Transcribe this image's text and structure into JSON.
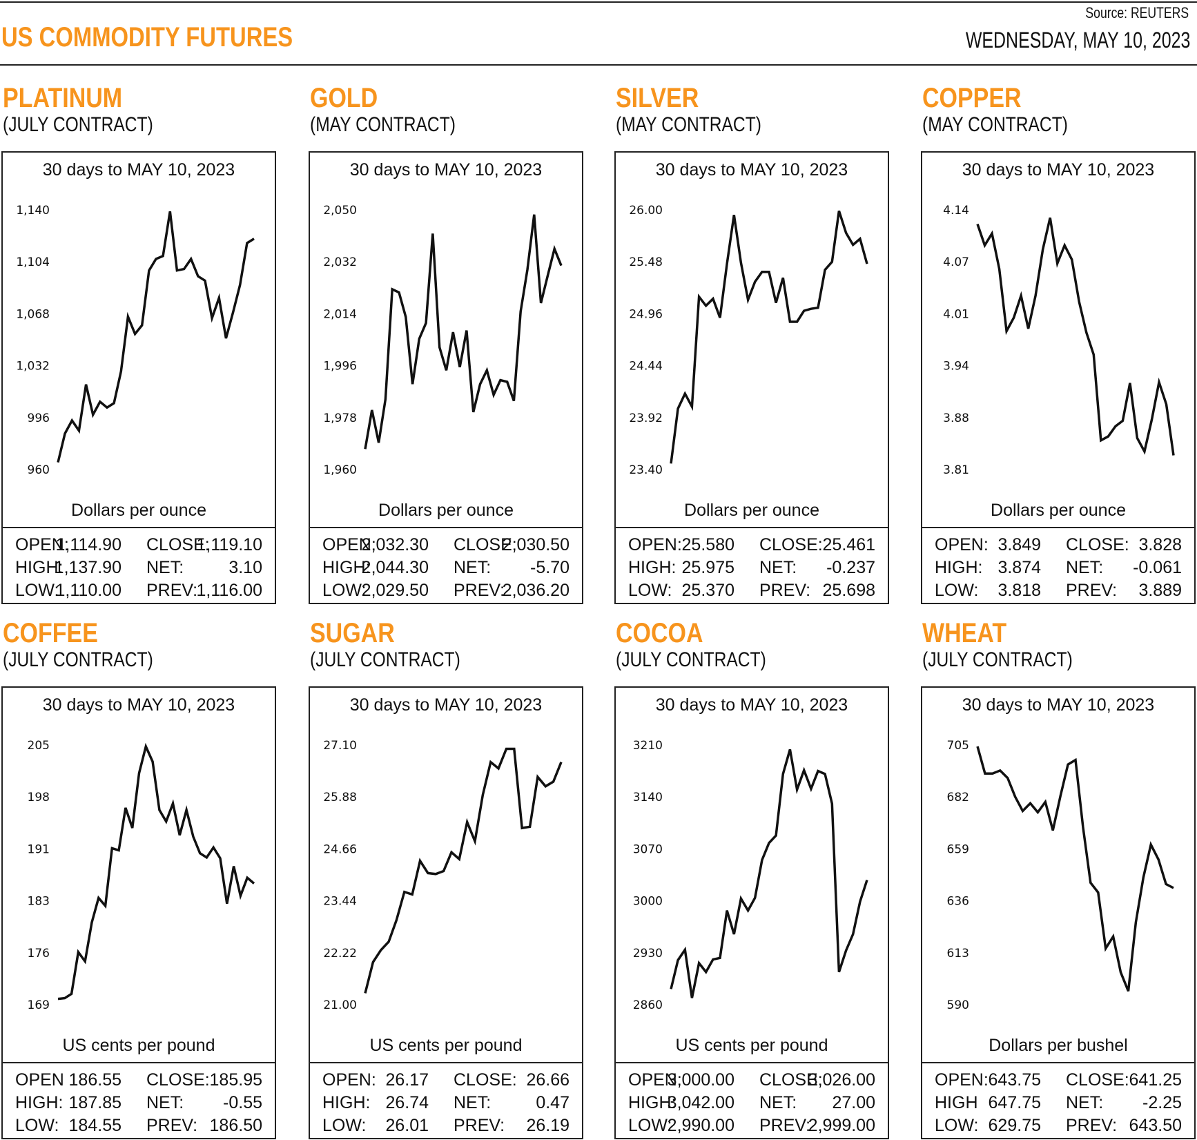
{
  "header": {
    "title": "US COMMODITY FUTURES",
    "source": "Source: REUTERS",
    "date": "WEDNESDAY, MAY 10, 2023"
  },
  "colors": {
    "accent": "#F7941D",
    "line": "#111111"
  },
  "chart_data": [
    {
      "type": "line",
      "name": "PLATINUM",
      "contract": "(JULY CONTRACT)",
      "title": "30 days to MAY 10, 2023",
      "ylabel": "Dollars per ounce",
      "yticks": [
        "960",
        "996",
        "1,032",
        "1,068",
        "1,104",
        "1,140"
      ],
      "ylim": [
        960,
        1140
      ],
      "values": [
        965,
        985,
        994,
        987,
        1019,
        998,
        1007,
        1003,
        1006,
        1028,
        1066,
        1054,
        1060,
        1098,
        1106,
        1108,
        1139,
        1098,
        1099,
        1106,
        1094,
        1091,
        1065,
        1079,
        1051,
        1069,
        1088,
        1117,
        1120
      ],
      "stats": [
        [
          "OPEN:",
          "1,114.90",
          "CLOSE:",
          "1,119.10"
        ],
        [
          "HIGH:",
          "1,137.90",
          "NET:",
          "3.10"
        ],
        [
          "LOW:",
          "1,110.00",
          "PREV:",
          "1,116.00"
        ]
      ]
    },
    {
      "type": "line",
      "name": "GOLD",
      "contract": "(MAY CONTRACT)",
      "title": "30 days to MAY 10, 2023",
      "ylabel": "Dollars per ounce",
      "yticks": [
        "1,960",
        "1,978",
        "1,996",
        "2,014",
        "2,032",
        "2,050"
      ],
      "ylim": [
        1960,
        2050
      ],
      "values": [
        1967.1,
        1980.6,
        1969.3,
        1984.4,
        2022.5,
        2021.4,
        2012.9,
        1989.6,
        2005.3,
        2010.8,
        2041.8,
        2002.4,
        1994.4,
        2007.6,
        1995.5,
        2008.2,
        1979.9,
        1989.6,
        1994.4,
        1985.9,
        1991,
        1990.4,
        1983.8,
        2014.8,
        2029.3,
        2048.4,
        2017.7,
        2027.2,
        2036.5,
        2030.7
      ],
      "stats": [
        [
          "OPEN:",
          "2,032.30",
          "CLOSE:",
          "2,030.50"
        ],
        [
          "HIGH:",
          "2,044.30",
          "NET:",
          "-5.70"
        ],
        [
          "LOW:",
          "2,029.50",
          "PREV:",
          "2,036.20"
        ]
      ]
    },
    {
      "type": "line",
      "name": "SILVER",
      "contract": "(MAY CONTRACT)",
      "title": "30 days to MAY 10, 2023",
      "ylabel": "Dollars per ounce",
      "yticks": [
        "23.40",
        "23.92",
        "24.44",
        "24.96",
        "25.48",
        "26.00"
      ],
      "ylim": [
        23.4,
        26.0
      ],
      "values": [
        23.46,
        24.01,
        24.16,
        24.03,
        25.13,
        25.04,
        25.11,
        24.92,
        25.46,
        25.95,
        25.47,
        25.1,
        25.28,
        25.38,
        25.38,
        25.07,
        25.32,
        24.88,
        24.88,
        24.99,
        25.01,
        25.02,
        25.4,
        25.48,
        25.99,
        25.77,
        25.65,
        25.71,
        25.46
      ],
      "stats": [
        [
          "OPEN:",
          "25.580",
          "CLOSE:",
          "25.461"
        ],
        [
          "HIGH:",
          "25.975",
          "NET:",
          "-0.237"
        ],
        [
          "LOW:",
          "25.370",
          "PREV:",
          "25.698"
        ]
      ]
    },
    {
      "type": "line",
      "name": "COPPER",
      "contract": "(MAY CONTRACT)",
      "title": "30 days to MAY 10, 2023",
      "ylabel": "Dollars per ounce",
      "yticks": [
        "3.81",
        "3.88",
        "3.94",
        "4.01",
        "4.07",
        "4.14"
      ],
      "ylim": [
        3.81,
        4.14
      ],
      "values": [
        4.122,
        4.095,
        4.11,
        4.065,
        3.986,
        4.003,
        4.031,
        3.989,
        4.031,
        4.09,
        4.13,
        4.072,
        4.095,
        4.077,
        4.023,
        3.984,
        3.956,
        3.847,
        3.852,
        3.865,
        3.872,
        3.92,
        3.85,
        3.833,
        3.873,
        3.921,
        3.893,
        3.828
      ],
      "stats": [
        [
          "OPEN:",
          "3.849",
          "CLOSE:",
          "3.828"
        ],
        [
          "HIGH:",
          "3.874",
          "NET:",
          "-0.061"
        ],
        [
          "LOW:",
          "3.818",
          "PREV:",
          "3.889"
        ]
      ]
    },
    {
      "type": "line",
      "name": "COFFEE",
      "contract": "(JULY CONTRACT)",
      "title": "30 days to MAY 10, 2023",
      "ylabel": "US cents per pound",
      "yticks": [
        "169",
        "176",
        "183",
        "191",
        "198",
        "205"
      ],
      "ylim": [
        169,
        205
      ],
      "values": [
        169.8,
        169.9,
        170.5,
        176.3,
        175,
        180.4,
        183.8,
        182.7,
        190.7,
        190.4,
        196.3,
        193.5,
        201.1,
        204.8,
        202.7,
        196,
        194.4,
        196.9,
        192.5,
        196,
        192.3,
        190,
        189.4,
        190.8,
        189.3,
        183,
        188.2,
        184.1,
        186.6,
        185.8
      ],
      "stats": [
        [
          "OPEN",
          "186.55",
          "CLOSE:",
          "185.95"
        ],
        [
          "HIGH:",
          "187.85",
          "NET:",
          "-0.55"
        ],
        [
          "LOW:",
          "184.55",
          "PREV:",
          "186.50"
        ]
      ]
    },
    {
      "type": "line",
      "name": "SUGAR",
      "contract": "(JULY CONTRACT)",
      "title": "30 days to MAY 10, 2023",
      "ylabel": "US cents per pound",
      "yticks": [
        "21.00",
        "22.22",
        "23.44",
        "24.66",
        "25.88",
        "27.10"
      ],
      "ylim": [
        21.0,
        27.1
      ],
      "values": [
        21.27,
        22.0,
        22.28,
        22.48,
        22.99,
        23.65,
        23.59,
        24.38,
        24.09,
        24.07,
        24.14,
        24.58,
        24.42,
        25.29,
        24.84,
        25.93,
        26.7,
        26.55,
        27.01,
        27.01,
        25.15,
        25.18,
        26.35,
        26.13,
        26.24,
        26.7
      ],
      "stats": [
        [
          "OPEN:",
          "26.17",
          "CLOSE:",
          "26.66"
        ],
        [
          "HIGH:",
          "26.74",
          "NET:",
          "0.47"
        ],
        [
          "LOW:",
          "26.01",
          "PREV:",
          "26.19"
        ]
      ]
    },
    {
      "type": "line",
      "name": "COCOA",
      "contract": "(JULY CONTRACT)",
      "title": "30 days to MAY 10, 2023",
      "ylabel": "US cents per pound",
      "yticks": [
        "2860",
        "2930",
        "3000",
        "3070",
        "3140",
        "3210"
      ],
      "ylim": [
        2860,
        3210
      ],
      "values": [
        2881,
        2920,
        2934,
        2869,
        2916,
        2904,
        2921,
        2923,
        2987,
        2955,
        3003,
        2987,
        3004,
        3055,
        3078,
        3088,
        3171,
        3204,
        3150,
        3176,
        3151,
        3175,
        3171,
        3131,
        2904,
        2933,
        2955,
        2999,
        3028
      ],
      "stats": [
        [
          "OPEN:",
          "3,000.00",
          "CLOSE:",
          "3,026.00"
        ],
        [
          "HIGH:",
          "3,042.00",
          "NET:",
          "27.00"
        ],
        [
          "LOW:",
          "2,990.00",
          "PREV:",
          "2,999.00"
        ]
      ]
    },
    {
      "type": "line",
      "name": "WHEAT",
      "contract": "(JULY CONTRACT)",
      "title": "30 days to MAY 10, 2023",
      "ylabel": "Dollars per bushel",
      "yticks": [
        "590",
        "613",
        "636",
        "659",
        "682",
        "705"
      ],
      "ylim": [
        590,
        705
      ],
      "values": [
        704.4,
        692.4,
        692.4,
        693.7,
        690.4,
        682.1,
        675.8,
        679.2,
        675.2,
        679.8,
        667.2,
        682.5,
        696.4,
        698.4,
        668.6,
        644,
        639.7,
        614.9,
        620.2,
        604.3,
        596,
        626.5,
        646.3,
        660.9,
        654.3,
        643.4,
        641.7
      ],
      "stats": [
        [
          "OPEN:",
          "643.75",
          "CLOSE:",
          "641.25"
        ],
        [
          "HIGH",
          "647.75",
          "NET:",
          "-2.25"
        ],
        [
          "LOW:",
          "629.75",
          "PREV:",
          "643.50"
        ]
      ]
    }
  ]
}
